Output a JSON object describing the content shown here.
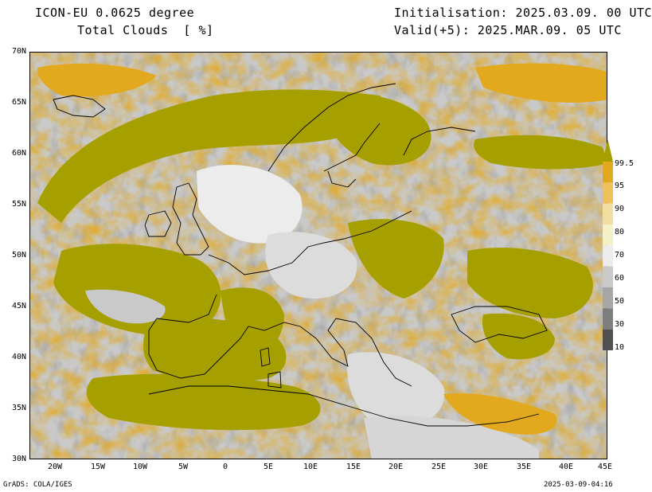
{
  "header": {
    "model": "ICON-EU 0.0625 degree",
    "variable": "Total Clouds  [ %]",
    "init": "Initialisation: 2025.03.09. 00 UTC",
    "valid": "Valid(+5): 2025.MAR.09. 05 UTC"
  },
  "lat_labels": [
    "70N",
    "65N",
    "60N",
    "55N",
    "50N",
    "45N",
    "40N",
    "35N",
    "30N"
  ],
  "lon_labels": [
    "20W",
    "15W",
    "10W",
    "5W",
    "0",
    "5E",
    "10E",
    "15E",
    "20E",
    "25E",
    "30E",
    "35E",
    "40E",
    "45E"
  ],
  "legend": {
    "labels": [
      "99.5",
      "95",
      "90",
      "80",
      "70",
      "60",
      "50",
      "30",
      "10"
    ],
    "colors": [
      "#a69f00",
      "#e3a91e",
      "#eec15c",
      "#f2dca0",
      "#f4f1c6",
      "#ececec",
      "#c9c9c9",
      "#a6a6a6",
      "#7e7e7e",
      "#505050"
    ]
  },
  "footer": {
    "left": "GrADS: COLA/IGES",
    "right": "2025-03-09-04:16"
  }
}
